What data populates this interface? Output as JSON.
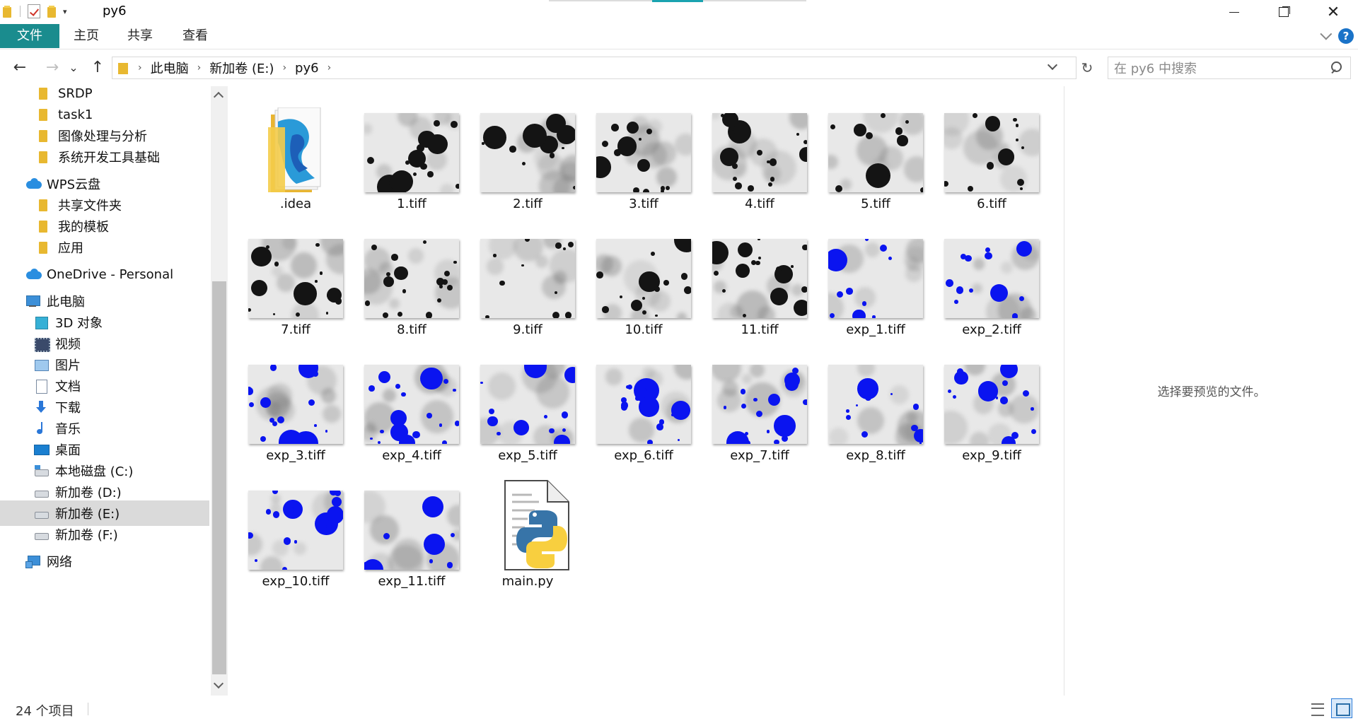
{
  "window": {
    "title": "py6",
    "quick_access_dropdown": "▾",
    "minimize_label": "",
    "close_glyph": "✕"
  },
  "ribbon": {
    "tabs": [
      "文件",
      "主页",
      "共享",
      "查看"
    ],
    "help_glyph": "?"
  },
  "nav": {
    "back_glyph": "←",
    "forward_glyph": "→",
    "recent_glyph": "⌄",
    "up_glyph": "↑",
    "refresh_glyph": "↻"
  },
  "address": {
    "crumbs": [
      "此电脑",
      "新加卷 (E:)",
      "py6"
    ],
    "separator": "›"
  },
  "search": {
    "placeholder": "在 py6 中搜索"
  },
  "sidebar": {
    "items": [
      {
        "label": "SRDP",
        "icon": "folder-icon"
      },
      {
        "label": "task1",
        "icon": "folder-icon"
      },
      {
        "label": "图像处理与分析",
        "icon": "folder-icon"
      },
      {
        "label": "系统开发工具基础",
        "icon": "folder-icon"
      },
      {
        "label": "WPS云盘",
        "icon": "cloud-icon"
      },
      {
        "label": "共享文件夹",
        "icon": "folder-icon"
      },
      {
        "label": "我的模板",
        "icon": "folder-icon"
      },
      {
        "label": "应用",
        "icon": "folder-icon"
      },
      {
        "label": "OneDrive - Personal",
        "icon": "cloud-icon"
      },
      {
        "label": "此电脑",
        "icon": "computer-icon"
      },
      {
        "label": "3D 对象",
        "icon": "cube-icon"
      },
      {
        "label": "视频",
        "icon": "video-icon"
      },
      {
        "label": "图片",
        "icon": "picture-icon"
      },
      {
        "label": "文档",
        "icon": "document-icon"
      },
      {
        "label": "下载",
        "icon": "download-icon"
      },
      {
        "label": "音乐",
        "icon": "music-icon"
      },
      {
        "label": "桌面",
        "icon": "desktop-icon"
      },
      {
        "label": "本地磁盘 (C:)",
        "icon": "drive-icon"
      },
      {
        "label": "新加卷 (D:)",
        "icon": "drive-icon"
      },
      {
        "label": "新加卷 (E:)",
        "icon": "drive-icon",
        "selected": true
      },
      {
        "label": "新加卷 (F:)",
        "icon": "drive-icon"
      },
      {
        "label": "网络",
        "icon": "network-icon"
      }
    ]
  },
  "files": [
    {
      "name": ".idea",
      "kind": "folder"
    },
    {
      "name": "1.tiff",
      "kind": "image-gray"
    },
    {
      "name": "2.tiff",
      "kind": "image-gray"
    },
    {
      "name": "3.tiff",
      "kind": "image-gray"
    },
    {
      "name": "4.tiff",
      "kind": "image-gray"
    },
    {
      "name": "5.tiff",
      "kind": "image-gray"
    },
    {
      "name": "6.tiff",
      "kind": "image-gray"
    },
    {
      "name": "7.tiff",
      "kind": "image-gray"
    },
    {
      "name": "8.tiff",
      "kind": "image-gray"
    },
    {
      "name": "9.tiff",
      "kind": "image-gray"
    },
    {
      "name": "10.tiff",
      "kind": "image-gray"
    },
    {
      "name": "11.tiff",
      "kind": "image-gray"
    },
    {
      "name": "exp_1.tiff",
      "kind": "image-blue"
    },
    {
      "name": "exp_2.tiff",
      "kind": "image-blue"
    },
    {
      "name": "exp_3.tiff",
      "kind": "image-blue"
    },
    {
      "name": "exp_4.tiff",
      "kind": "image-blue"
    },
    {
      "name": "exp_5.tiff",
      "kind": "image-blue"
    },
    {
      "name": "exp_6.tiff",
      "kind": "image-blue"
    },
    {
      "name": "exp_7.tiff",
      "kind": "image-blue"
    },
    {
      "name": "exp_8.tiff",
      "kind": "image-blue"
    },
    {
      "name": "exp_9.tiff",
      "kind": "image-blue"
    },
    {
      "name": "exp_10.tiff",
      "kind": "image-blue"
    },
    {
      "name": "exp_11.tiff",
      "kind": "image-blue"
    },
    {
      "name": "main.py",
      "kind": "python"
    }
  ],
  "preview": {
    "message": "选择要预览的文件。"
  },
  "status": {
    "item_count": "24 个项目"
  },
  "colors": {
    "ribbon_file_tab": "#1a8c8e",
    "accent": "#1aa3b0",
    "selection": "#dadada",
    "blob_dark": "#141414",
    "blob_blue": "#0a14f0"
  }
}
